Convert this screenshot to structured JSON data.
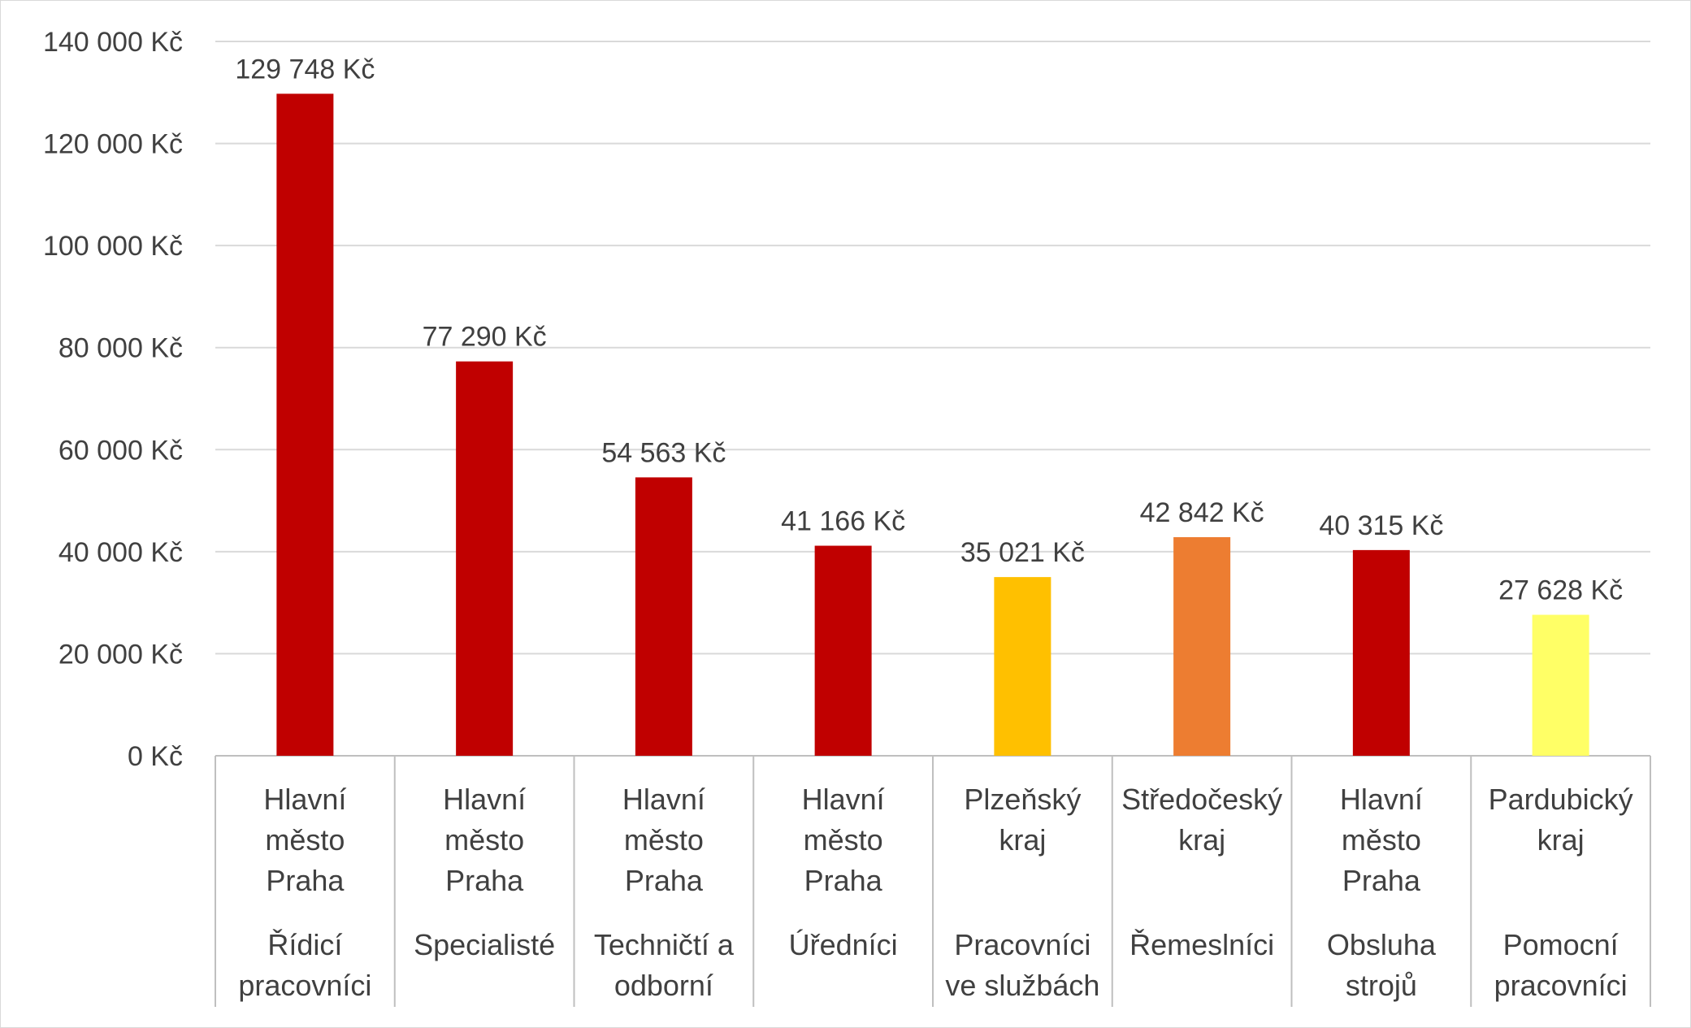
{
  "chart_data": {
    "type": "bar",
    "title": "",
    "xlabel": "",
    "ylabel": "",
    "ylim": [
      0,
      140000
    ],
    "y_ticks": [
      "0 Kč",
      "20 000 Kč",
      "40 000 Kč",
      "60 000 Kč",
      "80 000 Kč",
      "100 000 Kč",
      "120 000 Kč",
      "140 000 Kč"
    ],
    "grid": true,
    "legend": "none",
    "categories": [
      {
        "region": [
          "Hlavní",
          "město",
          "Praha"
        ],
        "occupation": [
          "Řídicí",
          "pracovníci"
        ]
      },
      {
        "region": [
          "Hlavní",
          "město",
          "Praha"
        ],
        "occupation": [
          "Specialisté"
        ]
      },
      {
        "region": [
          "Hlavní",
          "město",
          "Praha"
        ],
        "occupation": [
          "Techničtí a",
          "odborní"
        ]
      },
      {
        "region": [
          "Hlavní",
          "město",
          "Praha"
        ],
        "occupation": [
          "Úředníci"
        ]
      },
      {
        "region": [
          "Plzeňský",
          "kraj"
        ],
        "occupation": [
          "Pracovníci",
          "ve službách"
        ]
      },
      {
        "region": [
          "Středočeský",
          "kraj"
        ],
        "occupation": [
          "Řemeslníci"
        ]
      },
      {
        "region": [
          "Hlavní",
          "město",
          "Praha"
        ],
        "occupation": [
          "Obsluha",
          "strojů"
        ]
      },
      {
        "region": [
          "Pardubický",
          "kraj"
        ],
        "occupation": [
          "Pomocní",
          "pracovníci"
        ]
      }
    ],
    "values": [
      129748,
      77290,
      54563,
      41166,
      35021,
      42842,
      40315,
      27628
    ],
    "data_labels": [
      "129 748 Kč",
      "77 290 Kč",
      "54 563 Kč",
      "41 166 Kč",
      "35 021 Kč",
      "42 842 Kč",
      "40 315 Kč",
      "27 628 Kč"
    ],
    "bar_colors": [
      "#c00000",
      "#c00000",
      "#c00000",
      "#c00000",
      "#ffc000",
      "#ed7d31",
      "#c00000",
      "#ffff66"
    ],
    "colors": {
      "gridline": "#d9d9d9",
      "text": "#404040",
      "axis": "#bfbfbf"
    }
  }
}
